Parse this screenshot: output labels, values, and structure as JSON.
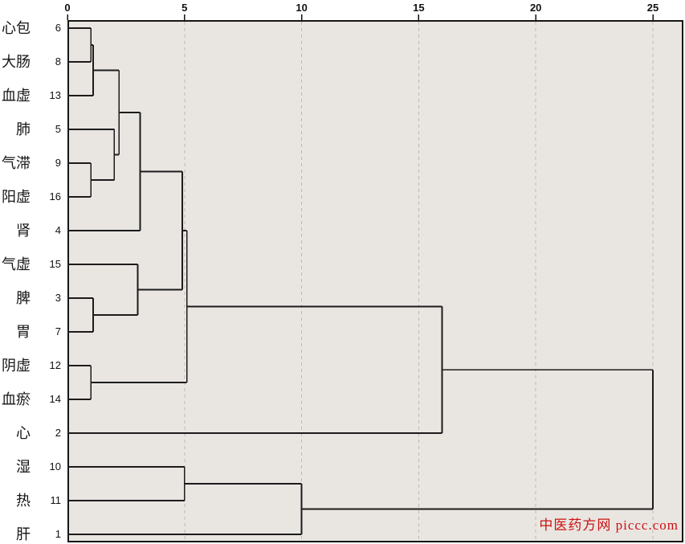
{
  "watermark": {
    "text": "中医药方网 piccc.com",
    "color": "#cc1111"
  },
  "chart_data": {
    "type": "dendrogram",
    "orientation": "horizontal",
    "title": "",
    "distance_axis": {
      "position": "top",
      "ticks": [
        0,
        5,
        10,
        15,
        20,
        25
      ],
      "range": [
        0,
        25
      ],
      "gridlines": "dashed"
    },
    "style": {
      "plot_background": "#e9e6e2",
      "line_color": "#1c1c1c",
      "grid_color": "#bdb9b3",
      "border_color": "#161616",
      "axis_text_color": "#111111"
    },
    "leaves": [
      {
        "label": "心包",
        "case": "6"
      },
      {
        "label": "大肠",
        "case": "8"
      },
      {
        "label": "血虚",
        "case": "13"
      },
      {
        "label": "肺",
        "case": "5"
      },
      {
        "label": "气滞",
        "case": "9"
      },
      {
        "label": "阳虚",
        "case": "16"
      },
      {
        "label": "肾",
        "case": "4"
      },
      {
        "label": "气虚",
        "case": "15"
      },
      {
        "label": "脾",
        "case": "3"
      },
      {
        "label": "胃",
        "case": "7"
      },
      {
        "label": "阴虚",
        "case": "12"
      },
      {
        "label": "血瘀",
        "case": "14"
      },
      {
        "label": "心",
        "case": "2"
      },
      {
        "label": "湿",
        "case": "10"
      },
      {
        "label": "热",
        "case": "11"
      },
      {
        "label": "肝",
        "case": "1"
      }
    ],
    "merges": [
      {
        "a": "L0",
        "b": "L1",
        "d": 1.0,
        "id": "C1"
      },
      {
        "a": "C1",
        "b": "L2",
        "d": 1.1,
        "id": "C2"
      },
      {
        "a": "L4",
        "b": "L5",
        "d": 1.0,
        "id": "C3"
      },
      {
        "a": "L3",
        "b": "C3",
        "d": 2.0,
        "id": "C4"
      },
      {
        "a": "C2",
        "b": "C4",
        "d": 2.2,
        "id": "C5"
      },
      {
        "a": "C5",
        "b": "L6",
        "d": 3.1,
        "id": "C6"
      },
      {
        "a": "L8",
        "b": "L9",
        "d": 1.1,
        "id": "C7"
      },
      {
        "a": "L7",
        "b": "C7",
        "d": 3.0,
        "id": "C8"
      },
      {
        "a": "C6",
        "b": "C8",
        "d": 4.9,
        "id": "C9"
      },
      {
        "a": "L10",
        "b": "L11",
        "d": 1.0,
        "id": "C10"
      },
      {
        "a": "C9",
        "b": "C10",
        "d": 5.1,
        "id": "C11"
      },
      {
        "a": "C11",
        "b": "L12",
        "d": 16.0,
        "id": "C12"
      },
      {
        "a": "L13",
        "b": "L14",
        "d": 5.0,
        "id": "C13"
      },
      {
        "a": "C13",
        "b": "L15",
        "d": 10.0,
        "id": "C14"
      },
      {
        "a": "C12",
        "b": "C14",
        "d": 25.0,
        "id": "C15"
      }
    ]
  }
}
